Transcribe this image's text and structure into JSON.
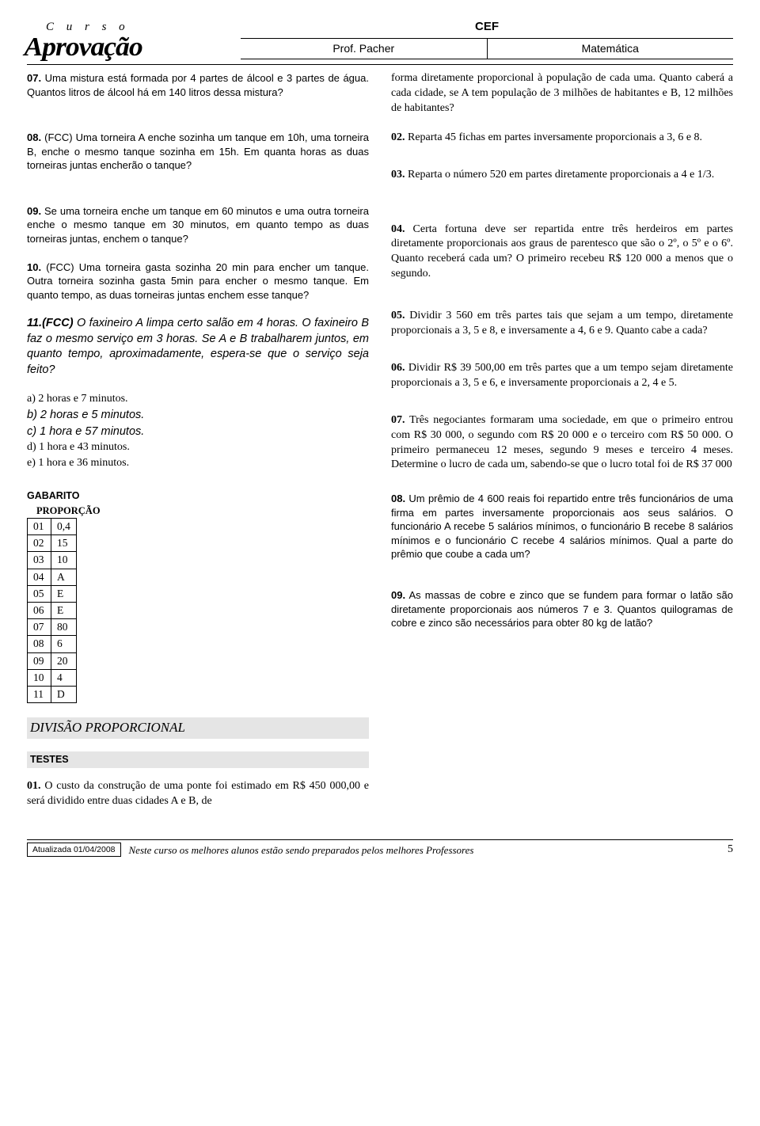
{
  "header": {
    "logo_top": "C u r s o",
    "logo_main": "Aprovação",
    "cef": "CEF",
    "prof": "Prof. Pacher",
    "subject": "Matemática"
  },
  "left": {
    "q07": "Uma mistura está formada por 4 partes de álcool e 3 partes de água. Quantos litros de álcool há em 140 litros dessa mistura?",
    "q08": "(FCC) Uma torneira A enche sozinha um tanque em 10h, uma torneira B, enche o mesmo tanque sozinha em 15h. Em quanta horas as duas torneiras juntas encherão o tanque?",
    "q09": "Se uma torneira enche um tanque em 60 minutos e uma outra torneira enche o mesmo tanque em 30 minutos, em quanto tempo as duas torneiras juntas, enchem o tanque?",
    "q10": "(FCC) Uma torneira gasta sozinha 20 min para encher um tanque. Outra torneira sozinha gasta 5min para encher o mesmo tanque. Em quanto tempo, as duas torneiras juntas enchem esse tanque?",
    "q11": "O faxineiro A limpa certo salão em 4 horas. O faxineiro B faz o mesmo serviço em 3 horas. Se A e B trabalharem juntos, em quanto tempo, aproximadamente, espera-se que o serviço seja feito?",
    "q11num": "11.(FCC)",
    "opts": {
      "a": "a)   2 horas e 7 minutos.",
      "b": "b)  2 horas e 5 minutos.",
      "c": "c)  1 hora e 57 minutos.",
      "d": "d)   1 hora e 43 minutos.",
      "e": "e)   1 hora e 36 minutos."
    },
    "gabarito_title": "GABARITO",
    "gabarito_sub": "PROPORÇÃO",
    "gabarito": [
      [
        "01",
        "0,4"
      ],
      [
        "02",
        "15"
      ],
      [
        "03",
        "10"
      ],
      [
        "04",
        "A"
      ],
      [
        "05",
        "E"
      ],
      [
        "06",
        "E"
      ],
      [
        "07",
        "80"
      ],
      [
        "08",
        "6"
      ],
      [
        "09",
        "20"
      ],
      [
        "10",
        "4"
      ],
      [
        "11",
        "D"
      ]
    ],
    "divisao": "DIVISÃO PROPORCIONAL",
    "testes": "TESTES",
    "q01b": "O custo da construção de uma ponte foi estimado em R$ 450 000,00 e será dividido entre duas cidades A e B, de"
  },
  "right": {
    "cont": "forma diretamente proporcional à população de cada uma. Quanto caberá a cada cidade, se A tem população de 3 milhões de habitantes e B, 12 milhões de habitantes?",
    "q02": "Reparta 45 fichas em partes inversamente proporcionais a 3, 6 e 8.",
    "q03": "Reparta o número 520 em partes diretamente proporcionais a 4 e 1/3.",
    "q04": "Certa fortuna deve ser repartida entre três herdeiros em partes diretamente proporcionais aos graus de parentesco que são o 2º, o 5º e o 6º. Quanto receberá cada um? O primeiro recebeu R$ 120 000 a menos que o segundo.",
    "q05": "Dividir 3 560 em três partes tais que sejam a um tempo, diretamente proporcionais a 3, 5 e 8, e inversamente a 4, 6 e 9. Quanto cabe a cada?",
    "q06": "Dividir R$ 39 500,00 em três partes que a um tempo sejam diretamente proporcionais a 3, 5 e 6, e inversamente proporcionais a 2, 4 e 5.",
    "q07": "Três negociantes formaram uma sociedade, em que o primeiro entrou com R$ 30 000, o segundo com  R$ 20 000 e o terceiro com R$ 50 000. O primeiro permaneceu 12 meses, segundo 9 meses e terceiro 4 meses. Determine o lucro de cada um, sabendo-se que o lucro total foi de R$ 37 000",
    "q08": "Um prêmio de 4 600 reais foi repartido entre três funcionários de uma firma em partes inversamente proporcionais aos seus salários. O funcionário A recebe 5 salários mínimos, o funcionário B recebe 8 salários mínimos e o funcionário C recebe 4 salários mínimos. Qual a parte do prêmio que coube a cada um?",
    "q09": "As massas de cobre e zinco que se fundem para formar o latão são diretamente proporcionais aos números 7 e 3. Quantos quilogramas de cobre e zinco são necessários para obter 80 kg de latão?"
  },
  "footer": {
    "date": "Atualizada 01/04/2008",
    "text": "Neste curso os melhores alunos estão sendo preparados pelos melhores Professores",
    "page": "5"
  }
}
